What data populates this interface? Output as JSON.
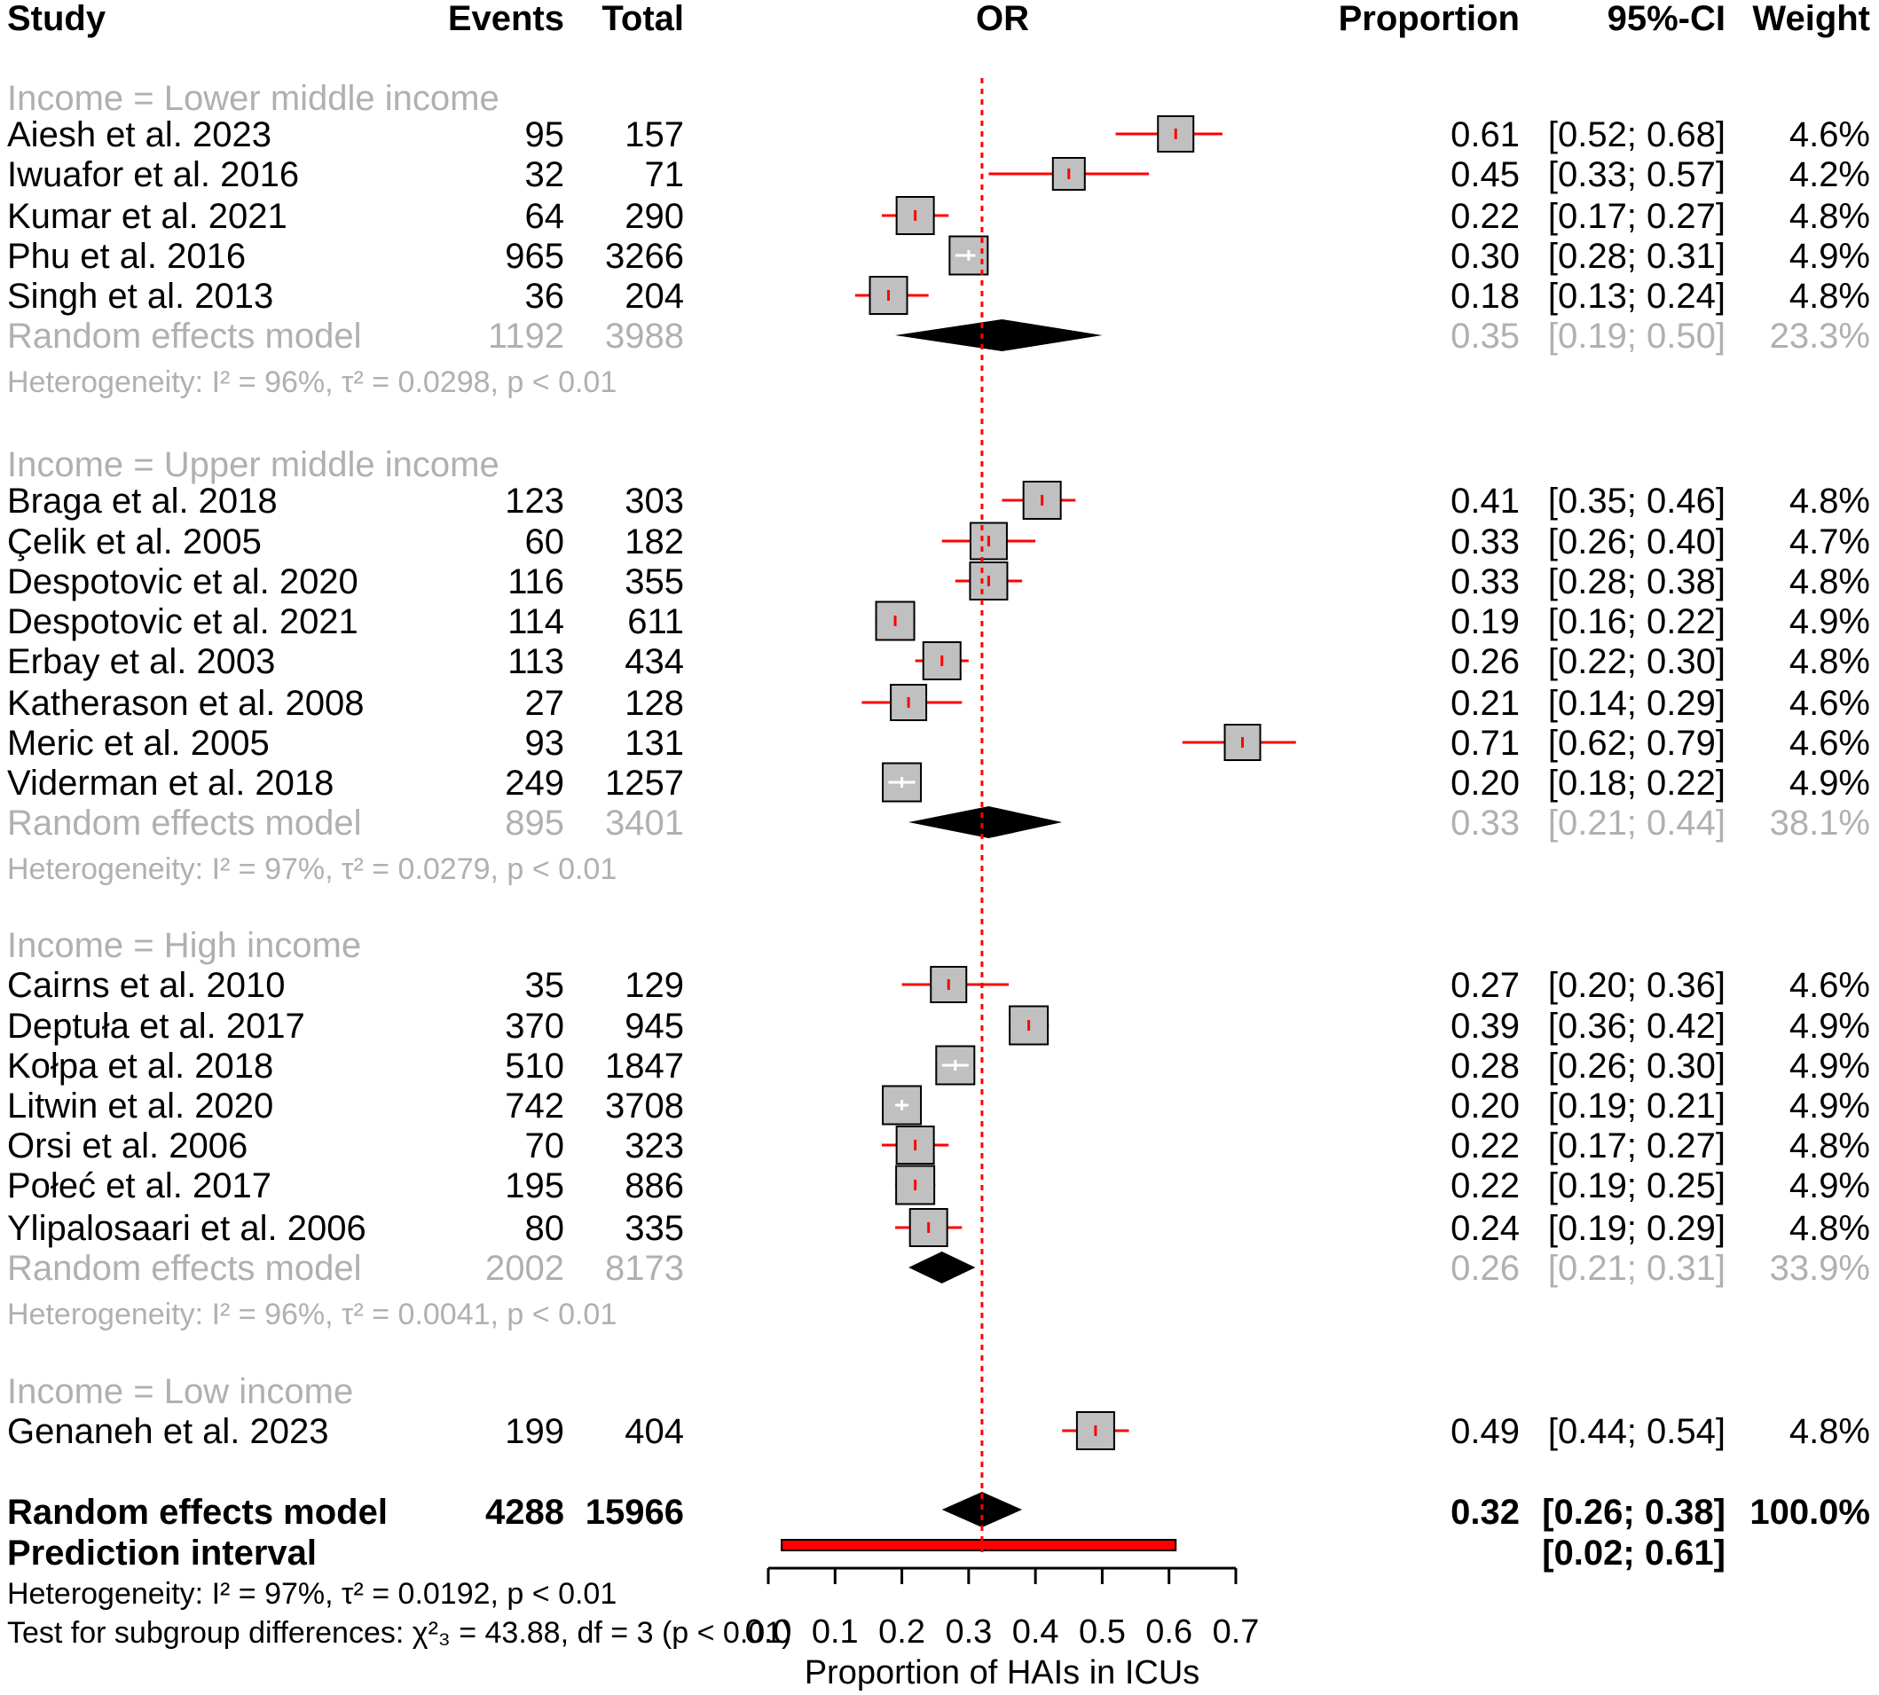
{
  "chart_data": {
    "type": "forest",
    "headers": {
      "study": "Study",
      "events": "Events",
      "total": "Total",
      "plot": "OR",
      "proportion": "Proportion",
      "ci": "95%-CI",
      "weight": "Weight"
    },
    "xlabel": "Proportion of HAIs in ICUs",
    "xlim": [
      0.0,
      0.7
    ],
    "xticks": [
      "0.0",
      "0.1",
      "0.2",
      "0.3",
      "0.4",
      "0.5",
      "0.6",
      "0.7"
    ],
    "reference_line": 0.32,
    "groups": [
      {
        "label": "Income = Lower middle income",
        "studies": [
          {
            "name": "Aiesh et al. 2023",
            "events": "95",
            "total": "157",
            "prop": 0.61,
            "lo": 0.52,
            "hi": 0.68,
            "prop_text": "0.61",
            "ci_text": "[0.52; 0.68]",
            "weight": "4.6%"
          },
          {
            "name": "Iwuafor et al. 2016",
            "events": "32",
            "total": "71",
            "prop": 0.45,
            "lo": 0.33,
            "hi": 0.57,
            "prop_text": "0.45",
            "ci_text": "[0.33; 0.57]",
            "weight": "4.2%"
          },
          {
            "name": "Kumar et al. 2021",
            "events": "64",
            "total": "290",
            "prop": 0.22,
            "lo": 0.17,
            "hi": 0.27,
            "prop_text": "0.22",
            "ci_text": "[0.17; 0.27]",
            "weight": "4.8%"
          },
          {
            "name": "Phu et al. 2016",
            "events": "965",
            "total": "3266",
            "prop": 0.3,
            "lo": 0.28,
            "hi": 0.31,
            "prop_text": "0.30",
            "ci_text": "[0.28; 0.31]",
            "weight": "4.9%"
          },
          {
            "name": "Singh et al. 2013",
            "events": "36",
            "total": "204",
            "prop": 0.18,
            "lo": 0.13,
            "hi": 0.24,
            "prop_text": "0.18",
            "ci_text": "[0.13; 0.24]",
            "weight": "4.8%"
          }
        ],
        "model": {
          "label": "Random effects model",
          "events": "1192",
          "total": "3988",
          "prop": 0.35,
          "lo": 0.19,
          "hi": 0.5,
          "prop_text": "0.35",
          "ci_text": "[0.19; 0.50]",
          "weight": "23.3%"
        },
        "heterogeneity": "Heterogeneity: I² = 96%, τ² = 0.0298, p < 0.01"
      },
      {
        "label": "Income = Upper middle income",
        "studies": [
          {
            "name": "Braga et al. 2018",
            "events": "123",
            "total": "303",
            "prop": 0.41,
            "lo": 0.35,
            "hi": 0.46,
            "prop_text": "0.41",
            "ci_text": "[0.35; 0.46]",
            "weight": "4.8%"
          },
          {
            "name": "Çelik et al. 2005",
            "events": "60",
            "total": "182",
            "prop": 0.33,
            "lo": 0.26,
            "hi": 0.4,
            "prop_text": "0.33",
            "ci_text": "[0.26; 0.40]",
            "weight": "4.7%"
          },
          {
            "name": "Despotovic et al. 2020",
            "events": "116",
            "total": "355",
            "prop": 0.33,
            "lo": 0.28,
            "hi": 0.38,
            "prop_text": "0.33",
            "ci_text": "[0.28; 0.38]",
            "weight": "4.8%"
          },
          {
            "name": "Despotovic et al. 2021",
            "events": "114",
            "total": "611",
            "prop": 0.19,
            "lo": 0.16,
            "hi": 0.22,
            "prop_text": "0.19",
            "ci_text": "[0.16; 0.22]",
            "weight": "4.9%"
          },
          {
            "name": "Erbay et al. 2003",
            "events": "113",
            "total": "434",
            "prop": 0.26,
            "lo": 0.22,
            "hi": 0.3,
            "prop_text": "0.26",
            "ci_text": "[0.22; 0.30]",
            "weight": "4.8%"
          },
          {
            "name": "Katherason et al. 2008",
            "events": "27",
            "total": "128",
            "prop": 0.21,
            "lo": 0.14,
            "hi": 0.29,
            "prop_text": "0.21",
            "ci_text": "[0.14; 0.29]",
            "weight": "4.6%"
          },
          {
            "name": "Meric et al. 2005",
            "events": "93",
            "total": "131",
            "prop": 0.71,
            "lo": 0.62,
            "hi": 0.79,
            "prop_text": "0.71",
            "ci_text": "[0.62; 0.79]",
            "weight": "4.6%"
          },
          {
            "name": "Viderman et al. 2018",
            "events": "249",
            "total": "1257",
            "prop": 0.2,
            "lo": 0.18,
            "hi": 0.22,
            "prop_text": "0.20",
            "ci_text": "[0.18; 0.22]",
            "weight": "4.9%"
          }
        ],
        "model": {
          "label": "Random effects model",
          "events": "895",
          "total": "3401",
          "prop": 0.33,
          "lo": 0.21,
          "hi": 0.44,
          "prop_text": "0.33",
          "ci_text": "[0.21; 0.44]",
          "weight": "38.1%"
        },
        "heterogeneity": "Heterogeneity: I² = 97%, τ² = 0.0279, p < 0.01"
      },
      {
        "label": "Income = High income",
        "studies": [
          {
            "name": "Cairns et al. 2010",
            "events": "35",
            "total": "129",
            "prop": 0.27,
            "lo": 0.2,
            "hi": 0.36,
            "prop_text": "0.27",
            "ci_text": "[0.20; 0.36]",
            "weight": "4.6%"
          },
          {
            "name": "Deptuła et al. 2017",
            "events": "370",
            "total": "945",
            "prop": 0.39,
            "lo": 0.36,
            "hi": 0.42,
            "prop_text": "0.39",
            "ci_text": "[0.36; 0.42]",
            "weight": "4.9%"
          },
          {
            "name": "Kołpa et al. 2018",
            "events": "510",
            "total": "1847",
            "prop": 0.28,
            "lo": 0.26,
            "hi": 0.3,
            "prop_text": "0.28",
            "ci_text": "[0.26; 0.30]",
            "weight": "4.9%"
          },
          {
            "name": "Litwin et al. 2020",
            "events": "742",
            "total": "3708",
            "prop": 0.2,
            "lo": 0.19,
            "hi": 0.21,
            "prop_text": "0.20",
            "ci_text": "[0.19; 0.21]",
            "weight": "4.9%"
          },
          {
            "name": "Orsi et al. 2006",
            "events": "70",
            "total": "323",
            "prop": 0.22,
            "lo": 0.17,
            "hi": 0.27,
            "prop_text": "0.22",
            "ci_text": "[0.17; 0.27]",
            "weight": "4.8%"
          },
          {
            "name": "Połeć et al. 2017",
            "events": "195",
            "total": "886",
            "prop": 0.22,
            "lo": 0.19,
            "hi": 0.25,
            "prop_text": "0.22",
            "ci_text": "[0.19; 0.25]",
            "weight": "4.9%"
          },
          {
            "name": "Ylipalosaari et al. 2006",
            "events": "80",
            "total": "335",
            "prop": 0.24,
            "lo": 0.19,
            "hi": 0.29,
            "prop_text": "0.24",
            "ci_text": "[0.19; 0.29]",
            "weight": "4.8%"
          }
        ],
        "model": {
          "label": "Random effects model",
          "events": "2002",
          "total": "8173",
          "prop": 0.26,
          "lo": 0.21,
          "hi": 0.31,
          "prop_text": "0.26",
          "ci_text": "[0.21; 0.31]",
          "weight": "33.9%"
        },
        "heterogeneity": "Heterogeneity: I² = 96%, τ² = 0.0041, p < 0.01"
      },
      {
        "label": "Income = Low income",
        "studies": [
          {
            "name": "Genaneh et al. 2023",
            "events": "199",
            "total": "404",
            "prop": 0.49,
            "lo": 0.44,
            "hi": 0.54,
            "prop_text": "0.49",
            "ci_text": "[0.44; 0.54]",
            "weight": "4.8%"
          }
        ],
        "model": null,
        "heterogeneity": ""
      }
    ],
    "overall": {
      "label": "Random effects model",
      "events": "4288",
      "total": "15966",
      "prop": 0.32,
      "lo": 0.26,
      "hi": 0.38,
      "prop_text": "0.32",
      "ci_text": "[0.26; 0.38]",
      "weight": "100.0%"
    },
    "prediction": {
      "label": "Prediction interval",
      "lo": 0.02,
      "hi": 0.61,
      "ci_text": "[0.02; 0.61]"
    },
    "overall_heterogeneity": "Heterogeneity: I² = 97%, τ² = 0.0192, p < 0.01",
    "subgroup_test": "Test for subgroup differences: χ²₃ = 43.88, df = 3 (p < 0.01)",
    "colors": {
      "ci_line": "#ff0000",
      "box_fill": "#c0c0c0",
      "box_stroke": "#000000",
      "diamond": "#000000",
      "reference_line": "#ff0000",
      "subgroup_text": "#b0b0b0"
    }
  }
}
